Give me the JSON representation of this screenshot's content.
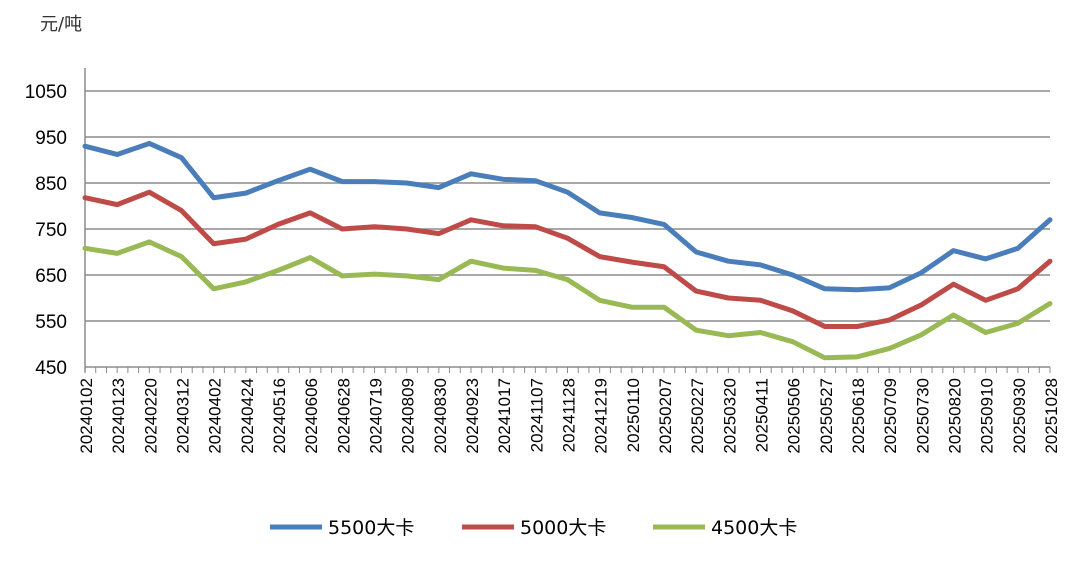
{
  "chart_data": {
    "type": "line",
    "title": "",
    "ylabel": "元/吨",
    "xlabel": "",
    "ylim": [
      450,
      1050
    ],
    "yticks": [
      1050,
      950,
      850,
      750,
      650,
      550,
      450
    ],
    "grid": true,
    "legend_position": "bottom",
    "categories": [
      "20240102",
      "20240123",
      "20240220",
      "20240312",
      "20240402",
      "20240424",
      "20240516",
      "20240606",
      "20240628",
      "20240719",
      "20240809",
      "20240830",
      "20240923",
      "20241017",
      "20241107",
      "20241128",
      "20241219",
      "20250110",
      "20250207",
      "20250227",
      "20250320",
      "20250411",
      "20250506",
      "20250527",
      "20250618",
      "20250709",
      "20250730",
      "20250820",
      "20250910",
      "20250930",
      "20251028"
    ],
    "series": [
      {
        "name": "5500大卡",
        "color": "#4a7ebb",
        "values": [
          930,
          912,
          936,
          905,
          818,
          828,
          855,
          880,
          853,
          853,
          850,
          840,
          870,
          858,
          855,
          830,
          785,
          775,
          760,
          700,
          680,
          672,
          650,
          620,
          618,
          622,
          655,
          703,
          685,
          708,
          770
        ]
      },
      {
        "name": "5000大卡",
        "color": "#be4b48",
        "values": [
          818,
          803,
          830,
          790,
          718,
          728,
          760,
          785,
          750,
          755,
          750,
          740,
          770,
          757,
          755,
          730,
          690,
          678,
          668,
          615,
          600,
          595,
          572,
          538,
          538,
          552,
          585,
          630,
          595,
          620,
          680
        ]
      },
      {
        "name": "4500大卡",
        "color": "#98b954",
        "values": [
          708,
          697,
          722,
          690,
          620,
          635,
          660,
          688,
          648,
          652,
          648,
          640,
          680,
          665,
          660,
          640,
          595,
          580,
          580,
          530,
          518,
          525,
          505,
          470,
          472,
          490,
          520,
          563,
          525,
          545,
          588
        ]
      }
    ]
  }
}
